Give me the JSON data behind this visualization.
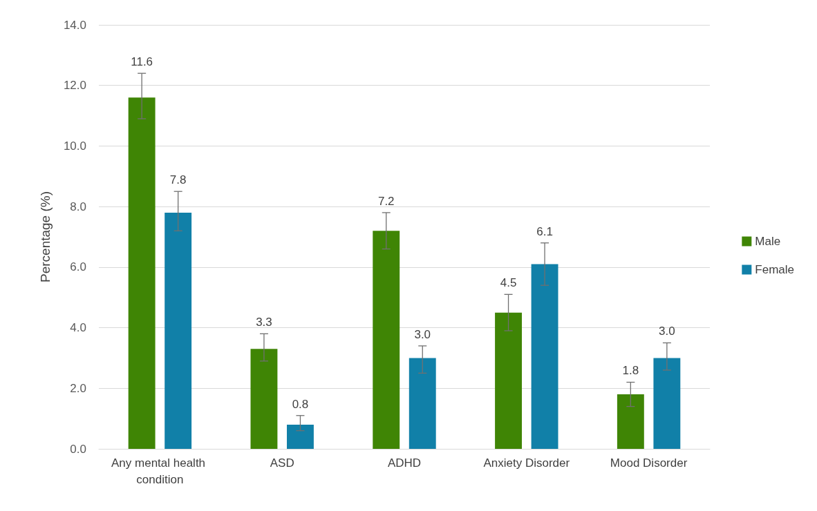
{
  "chart_data": {
    "type": "bar",
    "ylabel": "Percentage (%)",
    "categories": [
      "Any mental health condition",
      "ASD",
      "ADHD",
      "Anxiety Disorder",
      "Mood Disorder"
    ],
    "series": [
      {
        "name": "Male",
        "color": "#3f8505",
        "values": [
          11.6,
          3.3,
          7.2,
          4.5,
          1.8
        ],
        "value_labels": [
          "11.6",
          "3.3",
          "7.2",
          "4.5",
          "1.8"
        ],
        "errors": [
          [
            10.9,
            12.4
          ],
          [
            2.9,
            3.8
          ],
          [
            6.6,
            7.8
          ],
          [
            3.9,
            5.1
          ],
          [
            1.4,
            2.2
          ]
        ]
      },
      {
        "name": "Female",
        "color": "#1180a8",
        "values": [
          7.8,
          0.8,
          3.0,
          6.1,
          3.0
        ],
        "value_labels": [
          "7.8",
          "0.8",
          "3.0",
          "6.1",
          "3.0"
        ],
        "errors": [
          [
            7.2,
            8.5
          ],
          [
            0.6,
            1.1
          ],
          [
            2.5,
            3.4
          ],
          [
            5.4,
            6.8
          ],
          [
            2.6,
            3.5
          ]
        ]
      }
    ],
    "ylim": [
      0,
      14
    ],
    "yticks": [
      {
        "value": 0,
        "label": "0.0"
      },
      {
        "value": 2,
        "label": "2.0"
      },
      {
        "value": 4,
        "label": "4.0"
      },
      {
        "value": 6,
        "label": "6.0"
      },
      {
        "value": 8,
        "label": "8.0"
      },
      {
        "value": 10,
        "label": "10.0"
      },
      {
        "value": 12,
        "label": "12.0"
      },
      {
        "value": 14,
        "label": "14.0"
      }
    ],
    "grid": "y",
    "legend": "right"
  }
}
